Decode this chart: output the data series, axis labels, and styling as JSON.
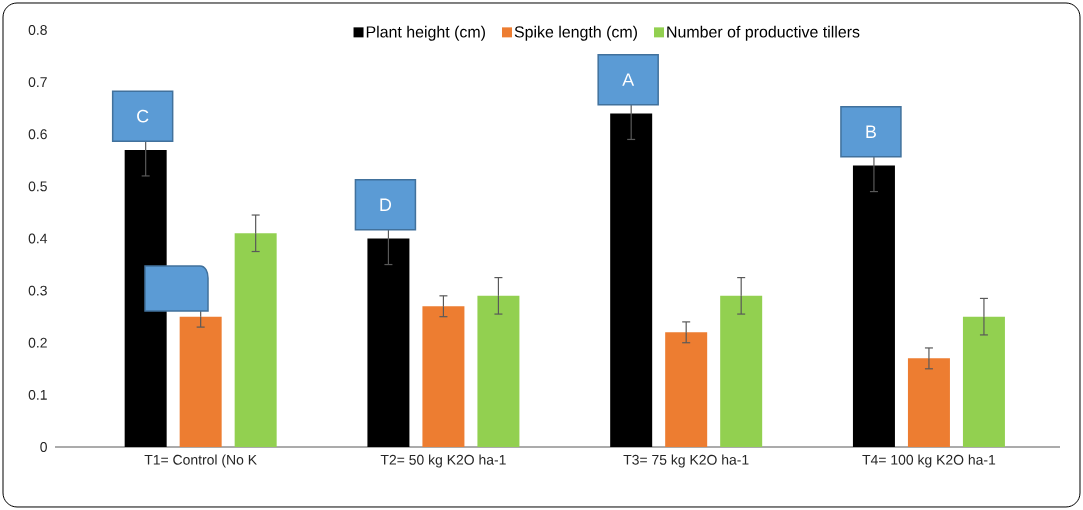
{
  "chart_data": {
    "type": "bar",
    "categories": [
      "T1= Control (No K",
      "T2= 50 kg K2O ha-1",
      "T3= 75 kg K2O ha-1",
      "T4= 100 kg K2O ha-1"
    ],
    "series": [
      {
        "name": "Plant height (cm)",
        "color": "#000000",
        "values": [
          0.57,
          0.4,
          0.64,
          0.54
        ],
        "errors": [
          0.05,
          0.05,
          0.05,
          0.05
        ]
      },
      {
        "name": "Spike length (cm)",
        "color": "#ed7d31",
        "values": [
          0.25,
          0.27,
          0.22,
          0.17
        ],
        "errors": [
          0.02,
          0.02,
          0.02,
          0.02
        ]
      },
      {
        "name": "Number of productive tillers",
        "color": "#92d050",
        "values": [
          0.41,
          0.29,
          0.29,
          0.25
        ],
        "errors": [
          0.035,
          0.035,
          0.035,
          0.035
        ]
      }
    ],
    "ylim": [
      0,
      0.8
    ],
    "yticks": [
      0,
      0.1,
      0.2,
      0.3,
      0.4,
      0.5,
      0.6,
      0.7,
      0.8
    ],
    "grid": false,
    "legend": "top",
    "annotations": [
      "C",
      "D",
      "A",
      "B"
    ]
  }
}
